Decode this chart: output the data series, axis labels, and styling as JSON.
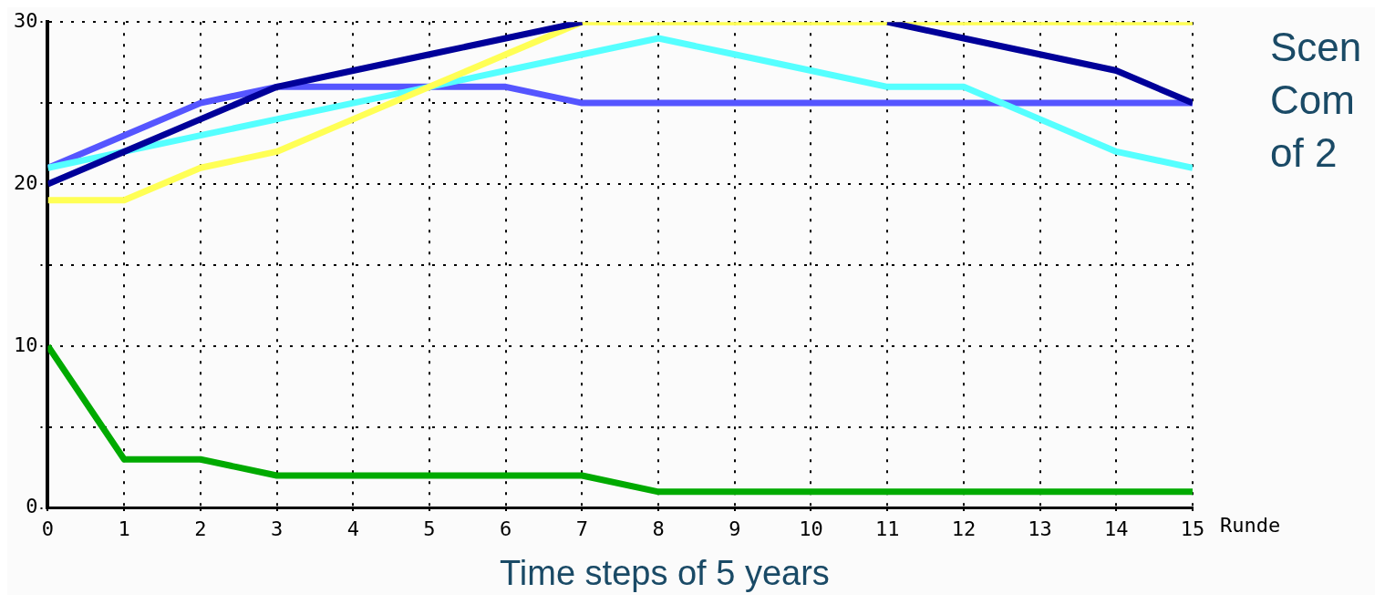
{
  "chart_data": {
    "type": "line",
    "xlabel": "Runde",
    "x": [
      0,
      1,
      2,
      3,
      4,
      5,
      6,
      7,
      8,
      9,
      10,
      11,
      12,
      13,
      14,
      15
    ],
    "xlim": [
      0,
      15
    ],
    "xticks": [
      0,
      1,
      2,
      3,
      4,
      5,
      6,
      7,
      8,
      9,
      10,
      11,
      12,
      13,
      14,
      15
    ],
    "ylim": [
      0,
      30
    ],
    "yticks": [
      0,
      {
        "value": 5,
        "label": null
      },
      10,
      {
        "value": 15,
        "label": null
      },
      20,
      {
        "value": 25,
        "label": null
      },
      30
    ],
    "grid": true,
    "legend": false,
    "marker": "none",
    "series": [
      {
        "color": "#000099",
        "values": [
          20,
          22,
          24,
          26,
          27,
          28,
          29,
          30,
          null,
          null,
          null,
          30,
          29,
          28,
          27,
          25
        ]
      },
      {
        "color": "#ffff55",
        "values": [
          19,
          19,
          21,
          22,
          24,
          26,
          28,
          30,
          30,
          30,
          30,
          30,
          30,
          30,
          30,
          30
        ]
      },
      {
        "color": "#55ffff",
        "values": [
          21,
          22,
          23,
          24,
          25,
          26,
          27,
          28,
          29,
          28,
          27,
          26,
          26,
          24,
          22,
          21
        ]
      },
      {
        "color": "#5555ff",
        "values": [
          21,
          23,
          25,
          26,
          26,
          26,
          26,
          25,
          25,
          25,
          25,
          25,
          25,
          25,
          25,
          25
        ]
      },
      {
        "color": "#00aa00",
        "values": [
          10,
          3,
          3,
          2,
          2,
          2,
          2,
          2,
          1,
          1,
          1,
          1,
          1,
          1,
          1,
          1
        ]
      }
    ],
    "annotations": [
      "Scen",
      "Com",
      "of 2",
      "Time steps of 5 years"
    ]
  }
}
